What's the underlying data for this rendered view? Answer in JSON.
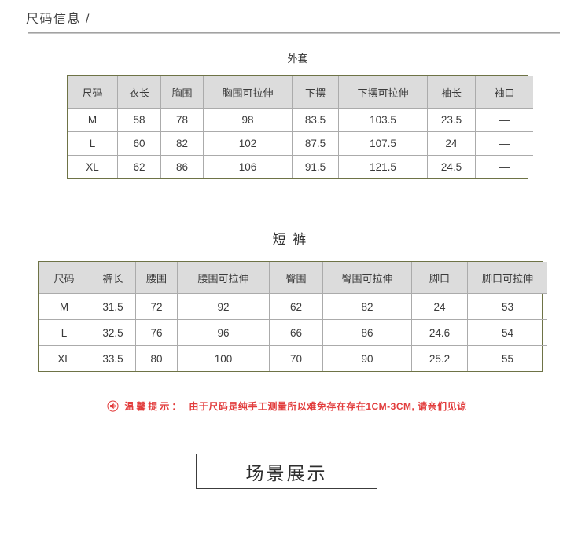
{
  "page": {
    "title": "尺码信息 /"
  },
  "tables": [
    {
      "caption": "外套",
      "columns": [
        "尺码",
        "衣长",
        "胸围",
        "胸围可拉伸",
        "下摆",
        "下摆可拉伸",
        "袖长",
        "袖口"
      ],
      "rows": [
        [
          "M",
          "58",
          "78",
          "98",
          "83.5",
          "103.5",
          "23.5",
          "—"
        ],
        [
          "L",
          "60",
          "82",
          "102",
          "87.5",
          "107.5",
          "24",
          "—"
        ],
        [
          "XL",
          "62",
          "86",
          "106",
          "91.5",
          "121.5",
          "24.5",
          "—"
        ]
      ]
    },
    {
      "caption": "短 裤",
      "columns": [
        "尺码",
        "裤长",
        "腰围",
        "腰围可拉伸",
        "臀围",
        "臀围可拉伸",
        "脚口",
        "脚口可拉伸"
      ],
      "rows": [
        [
          "M",
          "31.5",
          "72",
          "92",
          "62",
          "82",
          "24",
          "53"
        ],
        [
          "L",
          "32.5",
          "76",
          "96",
          "66",
          "86",
          "24.6",
          "54"
        ],
        [
          "XL",
          "33.5",
          "80",
          "100",
          "70",
          "90",
          "25.2",
          "55"
        ]
      ]
    }
  ],
  "tip": {
    "icon": "speaker-icon",
    "label": "温馨提示：",
    "text": "由于尺码是纯手工测量所以难免存在存在1CM-3CM, 请亲们见谅"
  },
  "scene": {
    "label": "场景展示"
  },
  "colors": {
    "table_border": "#6e7346",
    "grid_line": "#ababab",
    "header_bg": "#dcdcdc",
    "tip_red": "#e23d3d",
    "text": "#333333"
  }
}
